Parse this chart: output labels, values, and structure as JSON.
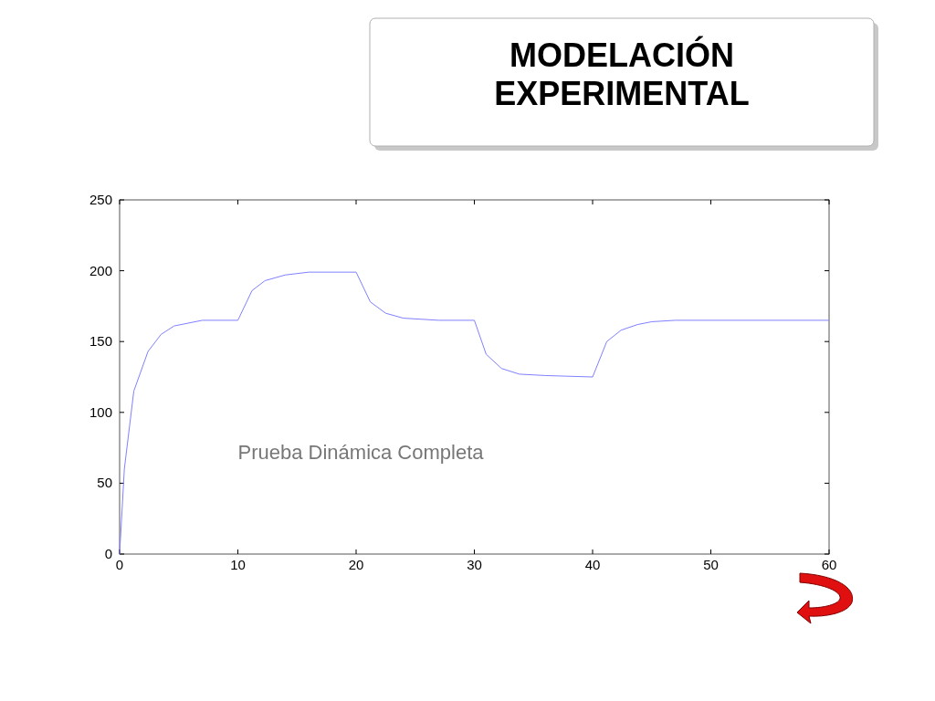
{
  "chart_data": {
    "type": "line",
    "title": "MODELACIÓN EXPERIMENTAL",
    "annotations": [
      "Prueba Dinámica Completa"
    ],
    "x": [
      0,
      0.4,
      1.2,
      2.4,
      3.5,
      4.6,
      7,
      10,
      11.2,
      12.3,
      14,
      16,
      20,
      21.2,
      22.5,
      24,
      27,
      30,
      31,
      32.3,
      33.8,
      36,
      40,
      41.2,
      42.4,
      43.8,
      45,
      47,
      60
    ],
    "series": [
      {
        "color": "#8080ff",
        "values": [
          0,
          60,
          115,
          143,
          155,
          161,
          165,
          165,
          186,
          193,
          197,
          199,
          199,
          178,
          170,
          166.5,
          165,
          165,
          141,
          131,
          127,
          126,
          125,
          150,
          158,
          162,
          164,
          165,
          165
        ]
      }
    ],
    "xlim": [
      0,
      60
    ],
    "ylim": [
      0,
      250
    ],
    "xticks": [
      0,
      10,
      20,
      30,
      40,
      50,
      60
    ],
    "yticks": [
      0,
      50,
      100,
      150,
      200,
      250
    ],
    "grid": false,
    "marker": "none",
    "line_style": "solid"
  }
}
